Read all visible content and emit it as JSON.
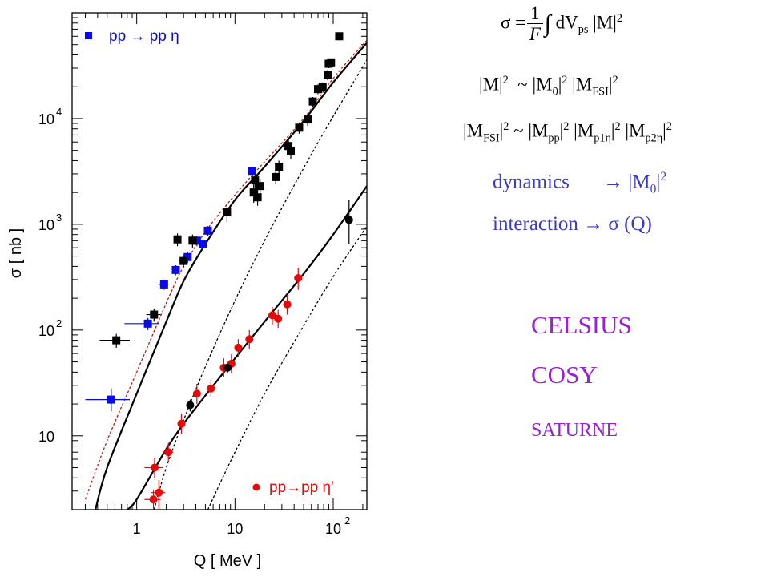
{
  "chart_data": {
    "type": "scatter",
    "title": "",
    "xlabel": "Q [ MeV ]",
    "ylabel": "σ [ nb ]",
    "x_scale": "log",
    "y_scale": "log",
    "xlim": [
      0.22,
      220
    ],
    "ylim": [
      2.0,
      100000
    ],
    "x_ticks": [
      {
        "value": 1,
        "label": "1"
      },
      {
        "value": 10,
        "label": "10"
      },
      {
        "value": 100,
        "label": "10",
        "sup": "2"
      }
    ],
    "y_ticks": [
      {
        "value": 10,
        "label": "10",
        "sup": ""
      },
      {
        "value": 100,
        "label": "10",
        "sup": "2"
      },
      {
        "value": 1000,
        "label": "10",
        "sup": "3"
      },
      {
        "value": 10000,
        "label": "10",
        "sup": "4"
      }
    ],
    "grid": false,
    "legend": [
      {
        "label": "pp → pp η",
        "color": "#0a0ae6",
        "marker": "square",
        "placement": "top-left"
      },
      {
        "label": "pp→pp η′",
        "color": "#e60a0a",
        "marker": "circle",
        "placement": "bottom-right"
      }
    ],
    "series": [
      {
        "name": "pp → pp η",
        "color": "#0a0ae6",
        "marker": "square",
        "points": [
          {
            "x": 0.55,
            "y": 22,
            "xerr": [
              0.3,
              0.85
            ],
            "yerr": [
              17,
              28
            ]
          },
          {
            "x": 1.3,
            "y": 115,
            "xerr": [
              0.75,
              1.7
            ],
            "yerr": [
              100,
              130
            ]
          },
          {
            "x": 1.9,
            "y": 270,
            "xerr": [
              1.7,
              2.1
            ],
            "yerr": [
              240,
              300
            ]
          },
          {
            "x": 2.5,
            "y": 370,
            "xerr": [
              2.3,
              2.7
            ],
            "yerr": [
              330,
              410
            ]
          },
          {
            "x": 3.3,
            "y": 490,
            "xerr": [
              3.1,
              3.5
            ],
            "yerr": [
              430,
              550
            ]
          },
          {
            "x": 4.1,
            "y": 700,
            "xerr": [
              3.9,
              4.3
            ],
            "yerr": [
              620,
              780
            ]
          },
          {
            "x": 4.7,
            "y": 650,
            "xerr": [
              4.5,
              4.9
            ],
            "yerr": [
              580,
              720
            ]
          },
          {
            "x": 5.3,
            "y": 870,
            "xerr": [
              5.0,
              5.6
            ],
            "yerr": [
              780,
              960
            ]
          },
          {
            "x": 15.0,
            "y": 3200,
            "xerr": [
              14.5,
              15.5
            ],
            "yerr": [
              2900,
              3500
            ]
          }
        ]
      },
      {
        "name": "pp → pp η (other)",
        "color": "#000000",
        "marker": "square",
        "points": [
          {
            "x": 0.62,
            "y": 80,
            "xerr": [
              0.42,
              0.85
            ],
            "yerr": [
              68,
              92
            ]
          },
          {
            "x": 1.5,
            "y": 140,
            "xerr": [
              1.25,
              1.75
            ],
            "yerr": [
              120,
              160
            ]
          },
          {
            "x": 2.6,
            "y": 720,
            "xerr": [
              2.4,
              2.8
            ],
            "yerr": [
              620,
              820
            ]
          },
          {
            "x": 3.0,
            "y": 450,
            "xerr": [
              2.7,
              3.3
            ],
            "yerr": [
              390,
              510
            ]
          },
          {
            "x": 3.7,
            "y": 700,
            "xerr": [
              3.4,
              4.0
            ],
            "yerr": [
              600,
              800
            ]
          },
          {
            "x": 8.3,
            "y": 1300,
            "xerr": [
              7.8,
              8.8
            ],
            "yerr": [
              1050,
              1550
            ]
          },
          {
            "x": 15.5,
            "y": 2000,
            "xerr": [
              14.5,
              16.5
            ],
            "yerr": [
              1600,
              2400
            ]
          },
          {
            "x": 16.0,
            "y": 2600,
            "xerr": [
              15.0,
              17.0
            ],
            "yerr": [
              2200,
              3000
            ]
          },
          {
            "x": 17.0,
            "y": 1800,
            "xerr": [
              16.0,
              18.0
            ],
            "yerr": [
              1500,
              2100
            ]
          },
          {
            "x": 18.0,
            "y": 2300,
            "xerr": [
              17.0,
              19.0
            ],
            "yerr": [
              1900,
              2700
            ]
          },
          {
            "x": 26.0,
            "y": 2800,
            "xerr": [
              25.0,
              27.0
            ],
            "yerr": [
              2400,
              3200
            ]
          },
          {
            "x": 28.0,
            "y": 3500,
            "xerr": [
              27.0,
              29.0
            ],
            "yerr": [
              3000,
              4000
            ]
          },
          {
            "x": 35.0,
            "y": 5500,
            "xerr": [
              33.0,
              37.0
            ],
            "yerr": [
              4700,
              6300
            ]
          },
          {
            "x": 37.0,
            "y": 4900,
            "xerr": [
              35.0,
              39.0
            ],
            "yerr": [
              4100,
              5700
            ]
          },
          {
            "x": 45.0,
            "y": 8200,
            "xerr": [
              43.0,
              47.0
            ],
            "yerr": [
              7200,
              9200
            ]
          },
          {
            "x": 55.0,
            "y": 9800,
            "xerr": [
              52.0,
              58.0
            ],
            "yerr": [
              8500,
              11000
            ]
          },
          {
            "x": 62.0,
            "y": 14500,
            "xerr": [
              59.0,
              65.0
            ],
            "yerr": [
              13000,
              16000
            ]
          },
          {
            "x": 70.0,
            "y": 19000,
            "xerr": [
              67.0,
              73.0
            ],
            "yerr": [
              17000,
              21000
            ]
          },
          {
            "x": 78.0,
            "y": 20000,
            "xerr": [
              75.0,
              81.0
            ],
            "yerr": [
              18000,
              22000
            ]
          },
          {
            "x": 88.0,
            "y": 26000,
            "xerr": [
              85.0,
              91.0
            ],
            "yerr": [
              23000,
              29000
            ]
          },
          {
            "x": 90.0,
            "y": 33000,
            "xerr": [
              87.0,
              93.0
            ],
            "yerr": [
              30000,
              36000
            ]
          },
          {
            "x": 95.0,
            "y": 34000,
            "xerr": [
              92.0,
              98.0
            ],
            "yerr": [
              31000,
              37000
            ]
          },
          {
            "x": 115.0,
            "y": 60000,
            "xerr": [
              112.0,
              118.0
            ],
            "yerr": [
              57000,
              63000
            ]
          }
        ]
      },
      {
        "name": "pp→pp η′",
        "color": "#e60a0a",
        "marker": "circle",
        "points": [
          {
            "x": 1.48,
            "y": 2.5,
            "xerr": [
              1.2,
              1.75
            ],
            "yerr": [
              2.0,
              3.1
            ]
          },
          {
            "x": 1.68,
            "y": 2.9,
            "xerr": [
              1.4,
              1.95
            ],
            "yerr": [
              2.0,
              3.8
            ]
          },
          {
            "x": 1.52,
            "y": 5.0,
            "xerr": [
              1.2,
              1.85
            ],
            "yerr": [
              4.0,
              6.2
            ]
          },
          {
            "x": 2.1,
            "y": 7.0,
            "xerr": [
              1.85,
              2.35
            ],
            "yerr": [
              5.6,
              8.6
            ]
          },
          {
            "x": 2.85,
            "y": 13.0,
            "xerr": [
              2.6,
              3.1
            ],
            "yerr": [
              10.5,
              16.0
            ]
          },
          {
            "x": 4.1,
            "y": 25.0,
            "xerr": [
              3.8,
              4.4
            ],
            "yerr": [
              20.0,
              31.0
            ]
          },
          {
            "x": 5.7,
            "y": 28.0,
            "xerr": [
              5.3,
              6.1
            ],
            "yerr": [
              23.0,
              34.0
            ]
          },
          {
            "x": 7.7,
            "y": 44.0,
            "xerr": [
              7.1,
              8.3
            ],
            "yerr": [
              36.0,
              54.0
            ]
          },
          {
            "x": 9.2,
            "y": 48.0,
            "xerr": [
              8.6,
              9.8
            ],
            "yerr": [
              39.0,
              59.0
            ]
          },
          {
            "x": 10.8,
            "y": 68.0,
            "xerr": [
              10.0,
              11.6
            ],
            "yerr": [
              56.0,
              82.0
            ]
          },
          {
            "x": 14.0,
            "y": 82.0,
            "xerr": [
              13.0,
              15.0
            ],
            "yerr": [
              66.0,
              100.0
            ]
          },
          {
            "x": 24.0,
            "y": 138.0,
            "xerr": [
              22.0,
              26.0
            ],
            "yerr": [
              112.0,
              165.0
            ]
          },
          {
            "x": 27.5,
            "y": 128.0,
            "xerr": [
              25.0,
              30.0
            ],
            "yerr": [
              105.0,
              155.0
            ]
          },
          {
            "x": 34.0,
            "y": 175.0,
            "xerr": [
              31.0,
              37.0
            ],
            "yerr": [
              140.0,
              215.0
            ]
          },
          {
            "x": 44.0,
            "y": 310.0,
            "xerr": [
              40.0,
              48.0
            ],
            "yerr": [
              240.0,
              390.0
            ]
          }
        ]
      },
      {
        "name": "pp→pp η′ (other)",
        "color": "#000000",
        "marker": "circle",
        "points": [
          {
            "x": 3.5,
            "y": 19.5,
            "xerr": [
              3.3,
              3.7
            ],
            "yerr": [
              17.0,
              22.0
            ]
          },
          {
            "x": 8.4,
            "y": 44.0,
            "xerr": [
              7.9,
              8.9
            ],
            "yerr": [
              39.0,
              50.0
            ]
          },
          {
            "x": 145.0,
            "y": 1100.0,
            "xerr": [
              140.0,
              150.0
            ],
            "yerr": [
              650.0,
              1700.0
            ]
          }
        ]
      }
    ],
    "curves": [
      {
        "style": "dotted",
        "color": "#c01818",
        "points": [
          [
            0.3,
            2.5
          ],
          [
            0.5,
            9
          ],
          [
            1,
            40
          ],
          [
            2,
            180
          ],
          [
            3,
            400
          ],
          [
            5,
            850
          ],
          [
            10,
            1900
          ],
          [
            20,
            3900
          ],
          [
            50,
            10000
          ],
          [
            100,
            24000
          ],
          [
            220,
            55000
          ]
        ]
      },
      {
        "style": "solid",
        "color": "#000000",
        "points": [
          [
            0.38,
            2.0
          ],
          [
            0.5,
            5
          ],
          [
            1,
            25
          ],
          [
            2,
            120
          ],
          [
            3,
            290
          ],
          [
            5,
            650
          ],
          [
            10,
            1700
          ],
          [
            20,
            3500
          ],
          [
            50,
            9500
          ],
          [
            100,
            22000
          ],
          [
            220,
            52000
          ]
        ]
      },
      {
        "style": "dotted",
        "color": "#000000",
        "points": [
          [
            1.5,
            2.0
          ],
          [
            2,
            5
          ],
          [
            3,
            14
          ],
          [
            5,
            45
          ],
          [
            10,
            190
          ],
          [
            20,
            700
          ],
          [
            50,
            3400
          ],
          [
            100,
            10500
          ],
          [
            220,
            36000
          ]
        ]
      },
      {
        "style": "solid",
        "color": "#000000",
        "points": [
          [
            0.8,
            2.0
          ],
          [
            1,
            2.5
          ],
          [
            2,
            7.5
          ],
          [
            3,
            13
          ],
          [
            5,
            24
          ],
          [
            10,
            54
          ],
          [
            20,
            120
          ],
          [
            50,
            340
          ],
          [
            100,
            800
          ],
          [
            220,
            2300
          ]
        ]
      },
      {
        "style": "dotted",
        "color": "#000000",
        "points": [
          [
            5.3,
            2.0
          ],
          [
            7,
            3.5
          ],
          [
            10,
            7
          ],
          [
            20,
            25
          ],
          [
            50,
            110
          ],
          [
            100,
            320
          ],
          [
            220,
            960
          ]
        ]
      }
    ]
  },
  "formulas": {
    "line1": {
      "lhs": "σ =",
      "num": "1",
      "den": "F",
      "integral": "∫",
      "dv": "dV",
      "dv_sub": "ps",
      "m": "|M|",
      "m_sup": "2"
    },
    "line2": {
      "a": "|M|",
      "a_sup": "2",
      "sim": "~",
      "b": "|M",
      "b_sub": "0",
      "b_tail": "|",
      "b_sup": "2",
      "c": "|M",
      "c_sub": "FSI",
      "c_tail": "|",
      "c_sup": "2"
    },
    "line3": {
      "a": "|M",
      "a_sub": "FSI",
      "a_tail": "|",
      "a_sup": "2",
      "sim": "~",
      "b": "|M",
      "b_sub": "pp",
      "b_tail": "|",
      "b_sup": "2",
      "c": "|M",
      "c_sub": "p1η",
      "c_tail": "|",
      "c_sup": "2",
      "d": "|M",
      "d_sub": "p2η",
      "d_tail": "|",
      "d_sup": "2"
    }
  },
  "notes": {
    "dynamics": {
      "label": "dynamics",
      "arrow": "→",
      "target": "|M",
      "target_sub": "0",
      "target_tail": "|",
      "target_sup": "2"
    },
    "interaction": {
      "label": "interaction",
      "arrow": "→",
      "target": "σ (Q)"
    }
  },
  "facilities": [
    "CELSIUS",
    "COSY",
    "SATURNE"
  ],
  "colors": {
    "blue_text": "#3a3ac4",
    "purple_text": "#9a1fd6",
    "eta": "#0a0ae6",
    "etaprime": "#e60a0a"
  }
}
